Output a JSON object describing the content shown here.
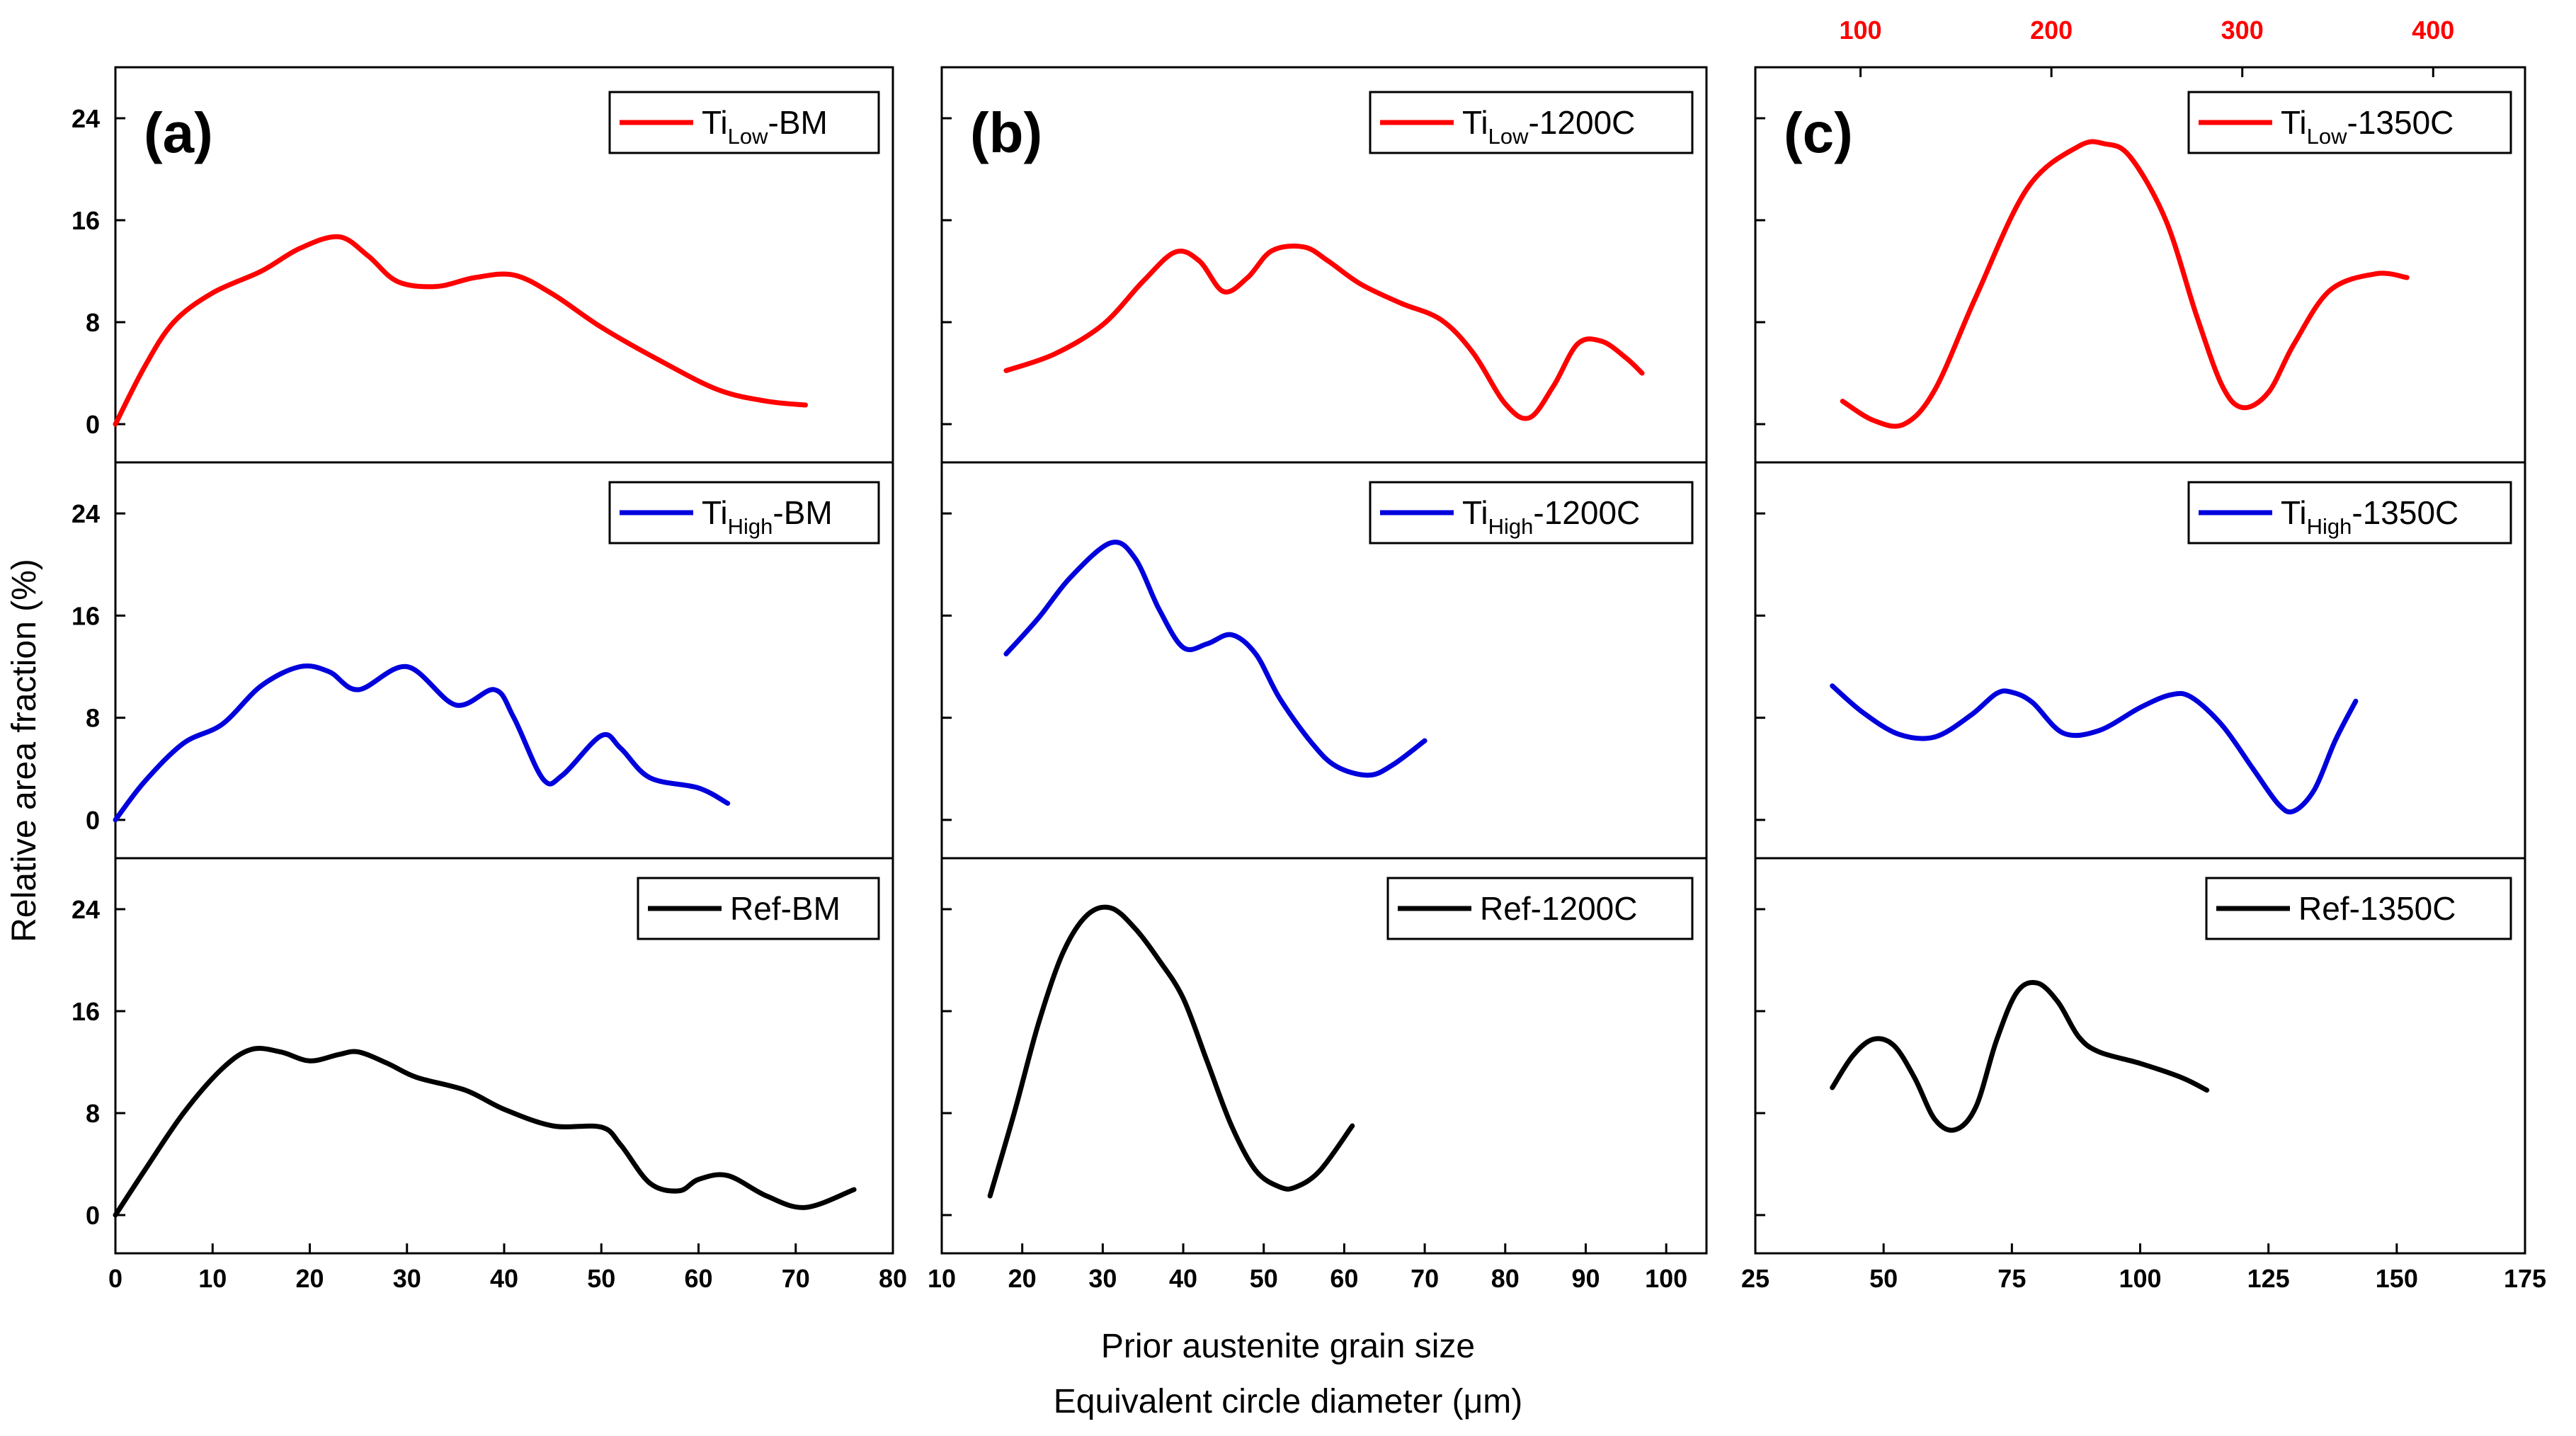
{
  "figure": {
    "ylabel": "Relative area fraction (%)",
    "xlabel_line1": "Prior austenite grain size",
    "xlabel_line2": "Equivalent circle diameter (μm)"
  },
  "colors": {
    "red": "#ff0000",
    "blue": "#0000dd",
    "black": "#000000"
  },
  "chart_data": [
    {
      "type": "line",
      "panel_label": "(a)",
      "x_range": [
        0,
        80
      ],
      "x_ticks": [
        0,
        10,
        20,
        30,
        40,
        50,
        60,
        70,
        80
      ],
      "y_range": [
        -3,
        28
      ],
      "y_ticks": [
        0,
        8,
        16,
        24
      ],
      "grid": false,
      "rows": [
        {
          "legend": {
            "main": "Ti",
            "sub": "Low",
            "suffix": "-BM"
          },
          "color": "red",
          "x": [
            0,
            3,
            6,
            10,
            15,
            19,
            23,
            26,
            29,
            33,
            37,
            41,
            45,
            50,
            56,
            62,
            67,
            71
          ],
          "y": [
            0,
            4.5,
            8,
            10.3,
            12,
            13.8,
            14.7,
            13.2,
            11.2,
            10.8,
            11.5,
            11.7,
            10.2,
            7.6,
            5,
            2.7,
            1.8,
            1.5
          ]
        },
        {
          "legend": {
            "main": "Ti",
            "sub": "High",
            "suffix": "-BM"
          },
          "color": "blue",
          "x": [
            0,
            3,
            7,
            11,
            15,
            19,
            22,
            25,
            30,
            35,
            39,
            41,
            44,
            46,
            50,
            52,
            55,
            60,
            63
          ],
          "y": [
            0,
            3,
            6,
            7.5,
            10.5,
            12,
            11.6,
            10.2,
            12,
            9,
            10.2,
            8,
            3.2,
            3.5,
            6.6,
            5.6,
            3.3,
            2.5,
            1.3
          ]
        },
        {
          "legend": {
            "main": "Ref-BM",
            "sub": "",
            "suffix": ""
          },
          "color": "black",
          "x": [
            0,
            3,
            7,
            11,
            14,
            17,
            20,
            23,
            25,
            28,
            31,
            36,
            40,
            45,
            50,
            52,
            55,
            58,
            60,
            63,
            67,
            71,
            76
          ],
          "y": [
            0,
            3.5,
            8,
            11.5,
            13,
            12.8,
            12.1,
            12.6,
            12.8,
            11.9,
            10.8,
            9.8,
            8.3,
            7,
            6.9,
            5.5,
            2.5,
            1.9,
            2.8,
            3.1,
            1.5,
            0.6,
            2
          ]
        }
      ]
    },
    {
      "type": "line",
      "panel_label": "(b)",
      "x_range": [
        10,
        105
      ],
      "x_ticks": [
        10,
        20,
        30,
        40,
        50,
        60,
        70,
        80,
        90,
        100
      ],
      "y_range": [
        -3,
        28
      ],
      "y_ticks": [
        0,
        8,
        16,
        24
      ],
      "grid": false,
      "rows": [
        {
          "legend": {
            "main": "Ti",
            "sub": "Low",
            "suffix": "-1200C"
          },
          "color": "red",
          "x": [
            18,
            24,
            30,
            35,
            39,
            42,
            45,
            48,
            51,
            55,
            58,
            62,
            67,
            72,
            76,
            80,
            83,
            86,
            89,
            92,
            95,
            97
          ],
          "y": [
            4.2,
            5.5,
            7.8,
            11.2,
            13.5,
            12.8,
            10.4,
            11.5,
            13.6,
            13.9,
            12.8,
            11,
            9.5,
            8.2,
            5.6,
            1.6,
            0.5,
            3,
            6.3,
            6.5,
            5.2,
            4
          ]
        },
        {
          "legend": {
            "main": "Ti",
            "sub": "High",
            "suffix": "-1200C"
          },
          "color": "blue",
          "x": [
            18,
            22,
            26,
            31,
            34,
            37,
            40,
            43,
            46,
            49,
            52,
            56,
            59,
            63,
            66,
            70
          ],
          "y": [
            13,
            15.8,
            19,
            21.7,
            20.5,
            16.5,
            13.5,
            13.8,
            14.5,
            13,
            9.5,
            6,
            4.2,
            3.5,
            4.3,
            6.2
          ]
        },
        {
          "legend": {
            "main": "Ref-1200C",
            "sub": "",
            "suffix": ""
          },
          "color": "black",
          "x": [
            16,
            19,
            22,
            25,
            28,
            31,
            34,
            37,
            40,
            43,
            46,
            49,
            52,
            54,
            57,
            61
          ],
          "y": [
            1.5,
            8,
            15,
            20.5,
            23.5,
            24.1,
            22.5,
            20,
            17,
            12,
            7,
            3.5,
            2.2,
            2.2,
            3.5,
            7
          ]
        }
      ]
    },
    {
      "type": "line",
      "panel_label": "(c)",
      "x_range": [
        25,
        175
      ],
      "x_ticks": [
        25,
        50,
        75,
        100,
        125,
        150,
        175
      ],
      "top_axis_ticks": [
        100,
        200,
        300,
        400
      ],
      "top_axis_at_bottom_x": [
        45.5,
        82.7,
        119.9,
        157.1
      ],
      "y_range": [
        -3,
        28
      ],
      "y_ticks": [
        0,
        8,
        16,
        24
      ],
      "grid": false,
      "rows": [
        {
          "legend": {
            "main": "Ti",
            "sub": "Low",
            "suffix": "-1350C"
          },
          "color": "red",
          "x": [
            42,
            48,
            54,
            60,
            68,
            78,
            88,
            93,
            98,
            105,
            111,
            116,
            120,
            125,
            130,
            137,
            146,
            152
          ],
          "y": [
            1.8,
            0.3,
            0,
            2.7,
            10,
            18.5,
            21.8,
            22,
            21,
            16,
            8.5,
            3,
            1.3,
            2.5,
            6.3,
            10.5,
            11.8,
            11.5
          ]
        },
        {
          "legend": {
            "main": "Ti",
            "sub": "High",
            "suffix": "-1350C"
          },
          "color": "blue",
          "x": [
            40,
            46,
            53,
            60,
            67,
            72,
            75,
            79,
            85,
            92,
            100,
            106,
            110,
            116,
            122,
            127,
            130,
            134,
            138,
            142
          ],
          "y": [
            10.5,
            8.4,
            6.7,
            6.5,
            8.2,
            9.9,
            10,
            9.2,
            6.8,
            7,
            8.8,
            9.8,
            9.6,
            7.4,
            4,
            1.2,
            0.7,
            2.4,
            6.2,
            9.3
          ]
        },
        {
          "legend": {
            "main": "Ref-1350C",
            "sub": "",
            "suffix": ""
          },
          "color": "black",
          "x": [
            40,
            44,
            48,
            52,
            56,
            60,
            64,
            68,
            72,
            76,
            80,
            84,
            88,
            92,
            100,
            108,
            113
          ],
          "y": [
            10,
            12.5,
            13.8,
            13.3,
            10.8,
            7.5,
            6.7,
            8.5,
            13.7,
            17.5,
            18.2,
            16.7,
            14,
            12.8,
            11.9,
            10.8,
            9.8
          ]
        }
      ]
    }
  ]
}
